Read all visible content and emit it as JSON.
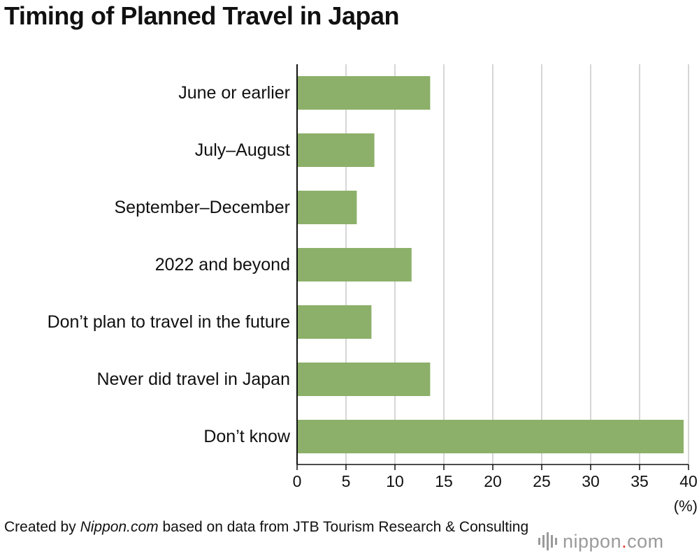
{
  "chart_data": {
    "type": "bar",
    "orientation": "horizontal",
    "title": "Timing of Planned Travel in Japan",
    "categories": [
      "June or earlier",
      "July–August",
      "September–December",
      "2022 and beyond",
      "Don’t plan to travel in the future",
      "Never did travel in Japan",
      "Don’t know"
    ],
    "values": [
      13.6,
      7.9,
      6.1,
      11.7,
      7.6,
      13.6,
      39.5
    ],
    "xlim": [
      0,
      40
    ],
    "xticks": [
      0,
      5,
      10,
      15,
      20,
      25,
      30,
      35,
      40
    ],
    "xunit": "(%)",
    "grid": true,
    "colors": {
      "bar": "#8cb069",
      "grid": "#d6d6d6",
      "axis": "#111111"
    }
  },
  "footer": {
    "credit_prefix": "Created by ",
    "credit_source": "Nippon.com",
    "credit_suffix": " based on data from JTB Tourism Research & Consulting",
    "logo_main": "nippon",
    "logo_dot": ".",
    "logo_tld": "com"
  }
}
